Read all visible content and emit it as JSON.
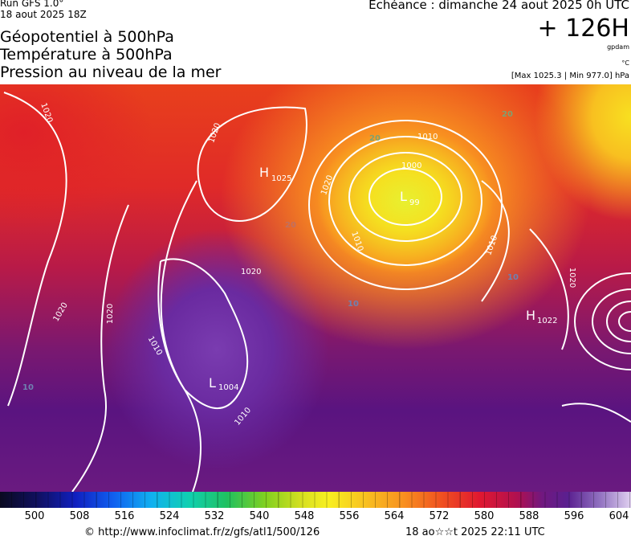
{
  "header": {
    "run": "Run GFS 1.0°",
    "date": "18 aout 2025 18Z",
    "titles": [
      "Géopotentiel à 500hPa",
      "Température à 500hPa",
      "Pression au niveau de la mer"
    ],
    "echeance": "Echéance : dimanche 24 aout 2025 0h UTC",
    "offset": "+ 126H",
    "unit_geo": "gpdam",
    "unit_temp": "°C",
    "range": "[Max 1025.3 | Min 977.0] hPa"
  },
  "map": {
    "centers": [
      {
        "letter": "H",
        "value": "1025"
      },
      {
        "letter": "L",
        "value": "99"
      },
      {
        "letter": "L",
        "value": "1004"
      },
      {
        "letter": "H",
        "value": "1022"
      }
    ],
    "isobars": [
      "1020",
      "1020",
      "1020",
      "1020",
      "1020",
      "1010",
      "1000",
      "1010",
      "1010",
      "1010",
      "1020",
      "1010",
      "1020"
    ],
    "isotherms": [
      "20",
      "20",
      "20",
      "10",
      "10",
      "10"
    ]
  },
  "colorbar": {
    "ticks": [
      500,
      508,
      516,
      524,
      532,
      540,
      548,
      556,
      564,
      572,
      580,
      588,
      596,
      604
    ]
  },
  "footer": {
    "url": "© http://www.infoclimat.fr/z/gfs/atl1/500/126",
    "timestamp": "18 ao☆☆t 2025 22:11 UTC"
  }
}
